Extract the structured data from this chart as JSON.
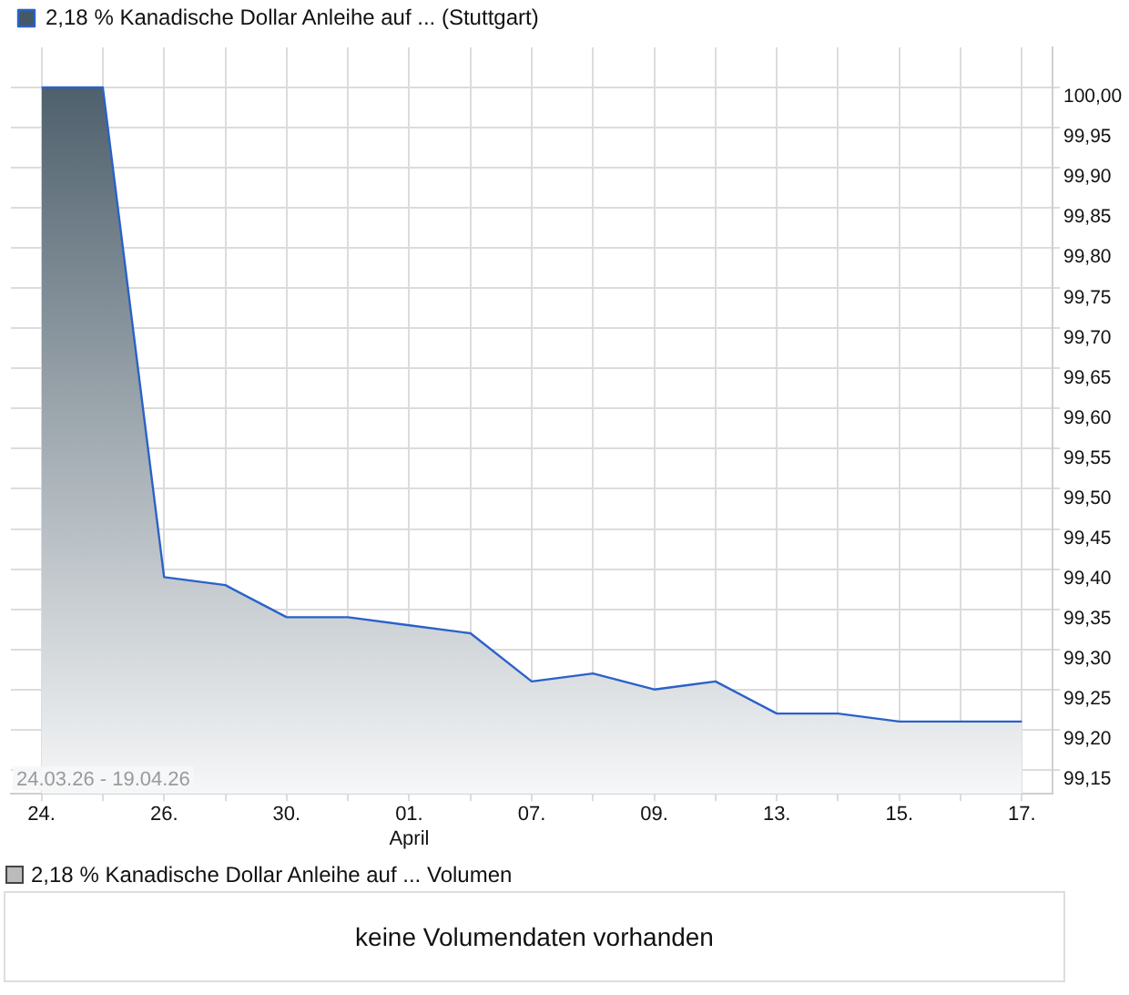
{
  "chart_data": [
    {
      "type": "area",
      "categories": [
        "24.",
        null,
        "26.",
        null,
        "30.",
        null,
        "01. April",
        null,
        "07.",
        null,
        "09.",
        null,
        "13.",
        null,
        "15.",
        null,
        "17."
      ],
      "series": [
        {
          "name": "2,18 % Kanadische Dollar Anleihe auf ... (Stuttgart)",
          "color": "#2a62c8",
          "values": [
            100.0,
            100.0,
            99.39,
            99.38,
            99.34,
            99.34,
            99.33,
            99.32,
            99.26,
            99.27,
            99.25,
            99.26,
            99.22,
            99.22,
            99.21,
            99.21,
            99.21
          ]
        }
      ],
      "ylim": [
        99.12,
        100.05
      ],
      "yticks": [
        {
          "value": 99.15,
          "label": "99,15"
        },
        {
          "value": 99.2,
          "label": "99,20"
        },
        {
          "value": 99.25,
          "label": "99,25"
        },
        {
          "value": 99.3,
          "label": "99,30"
        },
        {
          "value": 99.35,
          "label": "99,35"
        },
        {
          "value": 99.4,
          "label": "99,40"
        },
        {
          "value": 99.45,
          "label": "99,45"
        },
        {
          "value": 99.5,
          "label": "99,50"
        },
        {
          "value": 99.55,
          "label": "99,55"
        },
        {
          "value": 99.6,
          "label": "99,60"
        },
        {
          "value": 99.65,
          "label": "99,65"
        },
        {
          "value": 99.7,
          "label": "99,70"
        },
        {
          "value": 99.75,
          "label": "99,75"
        },
        {
          "value": 99.8,
          "label": "99,80"
        },
        {
          "value": 99.85,
          "label": "99,85"
        },
        {
          "value": 99.9,
          "label": "99,90"
        },
        {
          "value": 99.95,
          "label": "99,95"
        },
        {
          "value": 100,
          "label": "100,00"
        }
      ],
      "annotations": [
        "24.03.26 - 19.04.26"
      ],
      "grid": true,
      "legend": "top left",
      "marker": "none"
    },
    {
      "type": "other",
      "title": "2,18 % Kanadische Dollar Anleihe auf ... Volumen",
      "annotations": [
        "keine Volumendaten vorhanden"
      ]
    }
  ]
}
